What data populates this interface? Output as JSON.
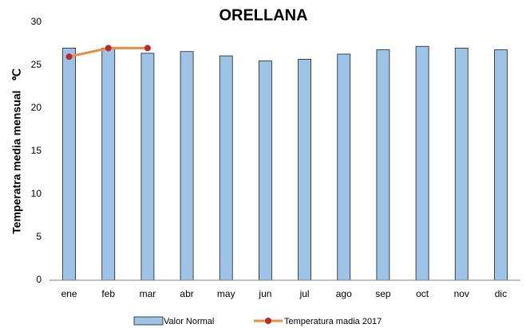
{
  "chart_data": {
    "type": "bar",
    "title": "ORELLANA",
    "y_label": "Temperatra media mensual   ℃",
    "categories": [
      "ene",
      "feb",
      "mar",
      "abr",
      "may",
      "jun",
      "jul",
      "ago",
      "sep",
      "oct",
      "nov",
      "dic"
    ],
    "series": [
      {
        "name": "Valor Normal",
        "type": "bar",
        "color": "#9dc3e6",
        "values": [
          27,
          27,
          26.4,
          26.6,
          26.1,
          25.5,
          25.7,
          26.3,
          26.8,
          27.2,
          27,
          26.8
        ]
      },
      {
        "name": "Temperatura madia 2017",
        "type": "line",
        "color": "#f08a3c",
        "marker_color": "#c0272d",
        "values": [
          26,
          27,
          27,
          null,
          null,
          null,
          null,
          null,
          null,
          null,
          null,
          null
        ]
      }
    ],
    "ylim": [
      0,
      30
    ],
    "yticks": [
      0,
      5,
      10,
      15,
      20,
      25,
      30
    ],
    "grid": false,
    "legend": "bottom"
  }
}
